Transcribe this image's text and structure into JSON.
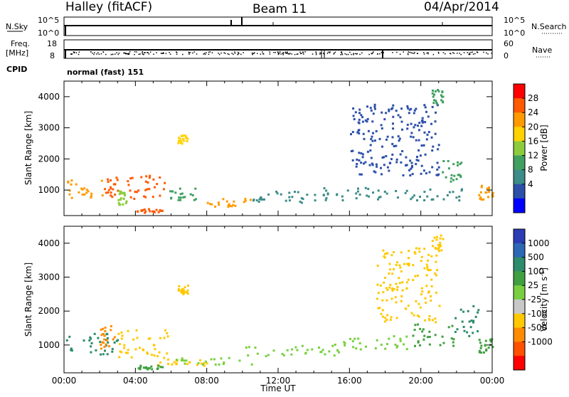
{
  "header": {
    "station": "Halley (fitACF)",
    "beam": "Beam 11",
    "date": "04/Apr/2014"
  },
  "strips": {
    "nsky_label": "N.Sky",
    "nsky_ticks": [
      "10^5",
      "10^0"
    ],
    "nsearch_label": "N.Search",
    "nsearch_ticks": [
      "10^5",
      "10^0"
    ],
    "freq_label_1": "Freq.",
    "freq_label_2": "[MHz]",
    "freq_ticks": [
      "18",
      "8"
    ],
    "nave_label": "Nave",
    "nave_ticks": [
      "60",
      "0"
    ],
    "cpid_label": "CPID",
    "cpid_text": "normal (fast) 151"
  },
  "chart_data": [
    {
      "type": "heatmap",
      "name": "power",
      "xlabel": "Time UT",
      "ylabel": "Slant Range [km]",
      "xlim": [
        0,
        24
      ],
      "ylim": [
        180,
        4500
      ],
      "y_ticks": [
        "4000",
        "3000",
        "2000",
        "1000"
      ],
      "colorbar": {
        "label": "Power [dB]",
        "tick_labels": [
          "28",
          "24",
          "20",
          "16",
          "12",
          "8",
          "4"
        ],
        "colors": [
          "#ff0000",
          "#ff5a00",
          "#ff9b00",
          "#ffd200",
          "#8ccc3c",
          "#40a060",
          "#3c8c88",
          "#2c50a8",
          "#0000ff"
        ]
      },
      "regions": [
        {
          "t0": 0.0,
          "t1": 2.2,
          "r0": 750,
          "r1": 1350,
          "level": 24
        },
        {
          "t0": 2.2,
          "t1": 3.0,
          "r0": 800,
          "r1": 1450,
          "level": 28
        },
        {
          "t0": 3.0,
          "t1": 3.5,
          "r0": 550,
          "r1": 1000,
          "level": 16
        },
        {
          "t0": 3.5,
          "t1": 5.8,
          "r0": 750,
          "r1": 1500,
          "level": 26
        },
        {
          "t0": 4.0,
          "t1": 5.5,
          "r0": 300,
          "r1": 420,
          "level": 26
        },
        {
          "t0": 5.8,
          "t1": 7.5,
          "r0": 700,
          "r1": 1100,
          "level": 14
        },
        {
          "t0": 6.3,
          "t1": 6.9,
          "r0": 2500,
          "r1": 2800,
          "level": 18
        },
        {
          "t0": 8.0,
          "t1": 10.5,
          "r0": 500,
          "r1": 750,
          "level": 22
        },
        {
          "t0": 10.5,
          "t1": 15.0,
          "r0": 600,
          "r1": 1000,
          "level": 8
        },
        {
          "t0": 14.5,
          "t1": 22.5,
          "r0": 700,
          "r1": 1100,
          "level": 10
        },
        {
          "t0": 16.0,
          "t1": 21.0,
          "r0": 1500,
          "r1": 3800,
          "level": 6
        },
        {
          "t0": 20.6,
          "t1": 21.2,
          "r0": 3800,
          "r1": 4300,
          "level": 12
        },
        {
          "t0": 21.0,
          "t1": 22.3,
          "r0": 1300,
          "r1": 2100,
          "level": 14
        },
        {
          "t0": 23.2,
          "t1": 24.0,
          "r0": 700,
          "r1": 1200,
          "level": 24
        }
      ]
    },
    {
      "type": "heatmap",
      "name": "velocity",
      "xlabel": "Time UT",
      "ylabel": "Slant Range [km]",
      "xlim": [
        0,
        24
      ],
      "ylim": [
        180,
        4500
      ],
      "x_tick_labels": [
        "00:00",
        "04:00",
        "08:00",
        "12:00",
        "16:00",
        "20:00",
        "00:00"
      ],
      "y_ticks": [
        "4000",
        "3000",
        "2000",
        "1000"
      ],
      "colorbar": {
        "label": "Velocity [m s",
        "label_superscript": "-1",
        "label_close": "]",
        "tick_labels": [
          "1000",
          "500",
          "100",
          "25",
          "-25",
          "-100",
          "-500",
          "-1000"
        ],
        "colors": [
          "#2c3cb4",
          "#2c68b4",
          "#2c8c6c",
          "#40a040",
          "#78d040",
          "#c8c8c8",
          "#ffc800",
          "#ff8c00",
          "#ff5000",
          "#ff0000"
        ]
      },
      "regions": [
        {
          "t0": 0.0,
          "t1": 3.0,
          "r0": 750,
          "r1": 1400,
          "level": 100
        },
        {
          "t0": 2.0,
          "t1": 2.8,
          "r0": 900,
          "r1": 1600,
          "level": -600
        },
        {
          "t0": 3.0,
          "t1": 5.8,
          "r0": 650,
          "r1": 1500,
          "level": -120
        },
        {
          "t0": 5.0,
          "t1": 8.0,
          "r0": 420,
          "r1": 620,
          "level": -110
        },
        {
          "t0": 4.0,
          "t1": 5.5,
          "r0": 300,
          "r1": 420,
          "level": 60
        },
        {
          "t0": 6.3,
          "t1": 6.9,
          "r0": 2500,
          "r1": 2800,
          "level": -300
        },
        {
          "t0": 6.0,
          "t1": 10.5,
          "r0": 450,
          "r1": 650,
          "level": 0
        },
        {
          "t0": 10.0,
          "t1": 15.5,
          "r0": 700,
          "r1": 1050,
          "level": 0
        },
        {
          "t0": 15.5,
          "t1": 19.5,
          "r0": 900,
          "r1": 1300,
          "level": 0
        },
        {
          "t0": 17.5,
          "t1": 21.0,
          "r0": 1700,
          "r1": 3900,
          "level": -300
        },
        {
          "t0": 19.5,
          "t1": 21.8,
          "r0": 1000,
          "r1": 1700,
          "level": 80
        },
        {
          "t0": 20.6,
          "t1": 21.2,
          "r0": 3800,
          "r1": 4300,
          "level": -300
        },
        {
          "t0": 21.8,
          "t1": 23.2,
          "r0": 1200,
          "r1": 2200,
          "level": 150
        },
        {
          "t0": 23.2,
          "t1": 24.0,
          "r0": 800,
          "r1": 1200,
          "level": 50
        }
      ]
    }
  ]
}
